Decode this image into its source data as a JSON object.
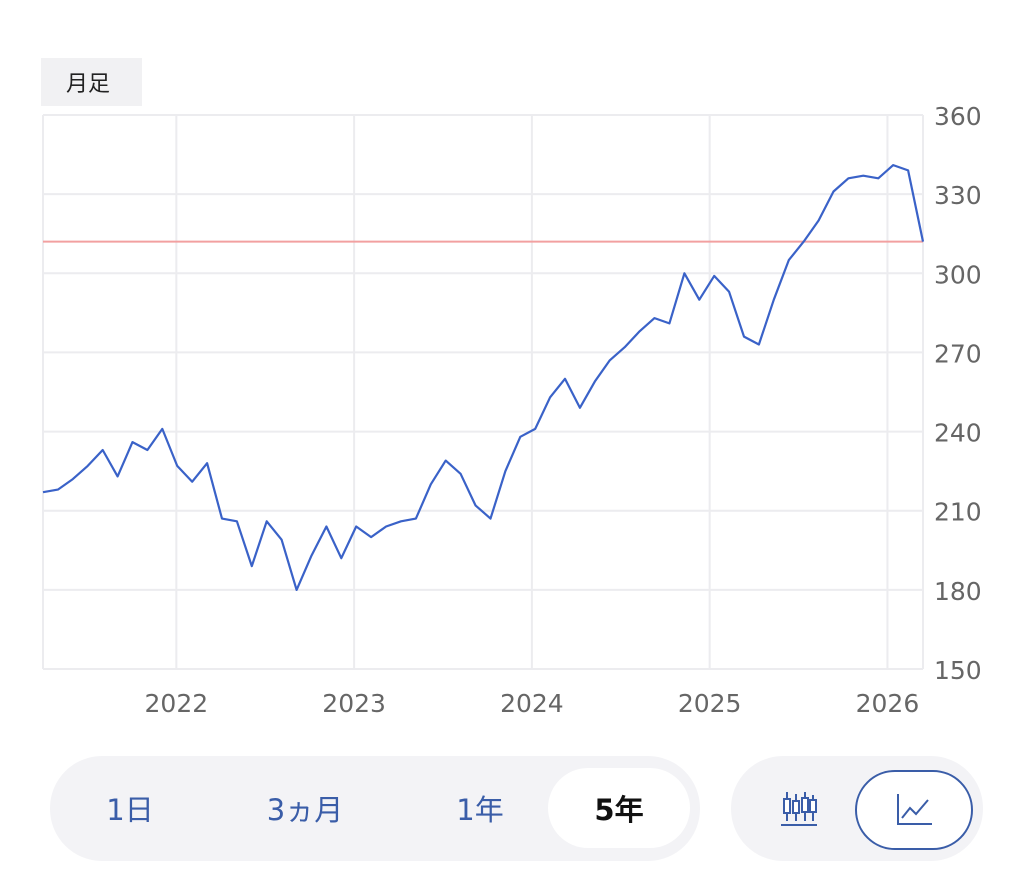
{
  "badge": {
    "label": "月足"
  },
  "chart_data": {
    "type": "line",
    "x_start": 2021.25,
    "x_end": 2026.2,
    "xlim": [
      2021.25,
      2026.2
    ],
    "ylim": [
      150,
      360
    ],
    "yticks": [
      150,
      180,
      210,
      240,
      270,
      300,
      330,
      360
    ],
    "xticks": [
      2022,
      2023,
      2024,
      2025,
      2026
    ],
    "reference_line": 312,
    "grid": true,
    "values": [
      217,
      218,
      222,
      227,
      233,
      223,
      236,
      233,
      241,
      227,
      221,
      228,
      207,
      206,
      189,
      206,
      199,
      180,
      193,
      204,
      192,
      204,
      200,
      204,
      206,
      207,
      220,
      229,
      224,
      212,
      207,
      225,
      238,
      241,
      253,
      260,
      249,
      259,
      267,
      272,
      278,
      283,
      281,
      300,
      290,
      299,
      293,
      276,
      273,
      290,
      305,
      312,
      320,
      331,
      336,
      337,
      336,
      341,
      339,
      312
    ]
  },
  "colors": {
    "line": "#3a62c8",
    "reference": "#f2a0a0",
    "grid": "#ececef",
    "tick": "#666666",
    "accent": "#3a5da8"
  },
  "range_buttons": [
    {
      "label": "1日"
    },
    {
      "label": "3ヵ月"
    },
    {
      "label": "1年"
    },
    {
      "label": "5年"
    }
  ],
  "chart_type_buttons": [
    {
      "icon": "candlestick-icon"
    },
    {
      "icon": "line-chart-icon"
    }
  ]
}
